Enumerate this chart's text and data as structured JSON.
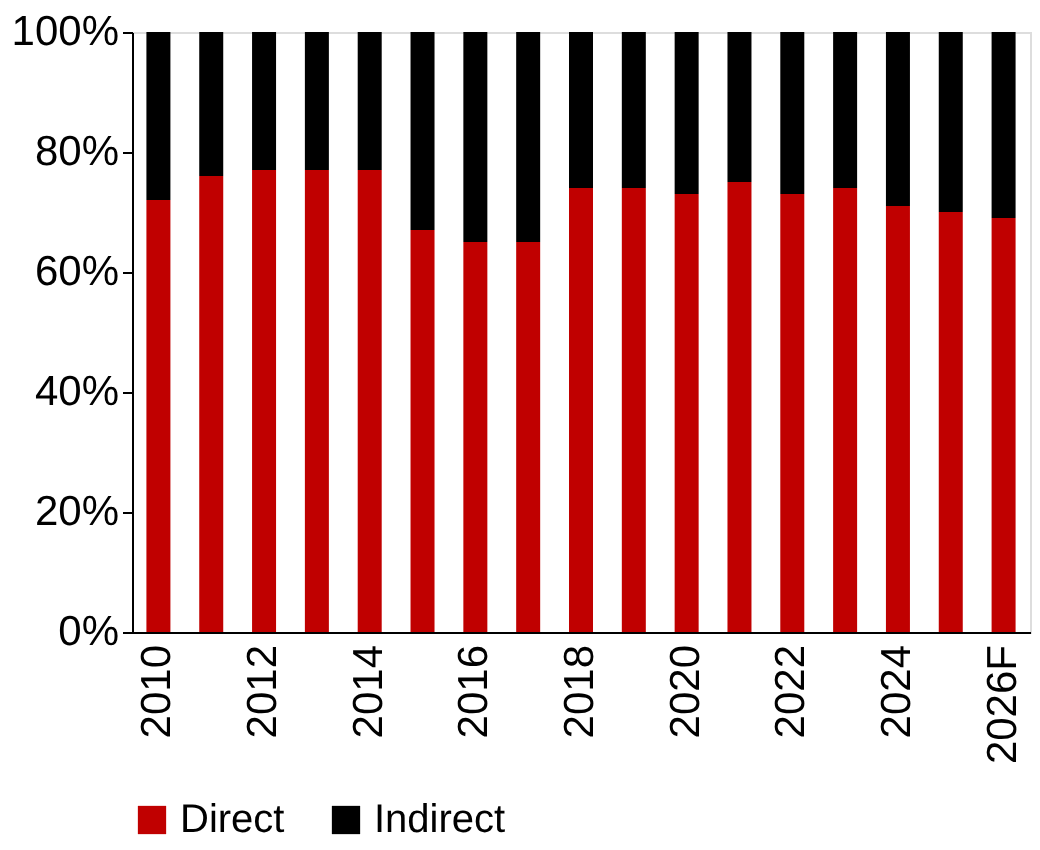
{
  "chart_data": {
    "type": "bar",
    "stacked": true,
    "categories": [
      "2010",
      null,
      "2012",
      null,
      "2014",
      null,
      "2016",
      null,
      "2018",
      null,
      "2020",
      null,
      "2022",
      null,
      "2024",
      null,
      "2026F"
    ],
    "series": [
      {
        "name": "Direct",
        "color": "#c00000",
        "values": [
          72,
          76,
          77,
          77,
          77,
          67,
          65,
          65,
          74,
          74,
          73,
          75,
          73,
          74,
          71,
          70,
          69
        ]
      },
      {
        "name": "Indirect",
        "color": "#000000",
        "values": [
          28,
          24,
          23,
          23,
          23,
          33,
          35,
          35,
          26,
          26,
          27,
          25,
          27,
          26,
          29,
          30,
          31
        ]
      }
    ],
    "ylim": [
      0,
      100
    ],
    "yticks": [
      {
        "value": 0,
        "label": "0%"
      },
      {
        "value": 20,
        "label": "20%"
      },
      {
        "value": 40,
        "label": "40%"
      },
      {
        "value": 60,
        "label": "60%"
      },
      {
        "value": 80,
        "label": "80%"
      },
      {
        "value": 100,
        "label": "100%"
      }
    ],
    "grid": false,
    "legend": "bottom"
  }
}
